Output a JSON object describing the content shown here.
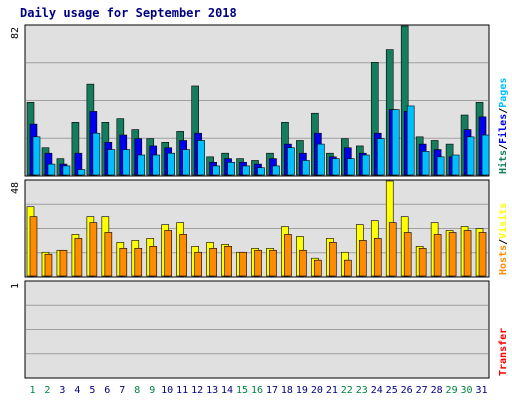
{
  "chart_data": {
    "title": "Daily usage for September 2018",
    "type": "bar",
    "days": [
      {
        "label": "1",
        "weekend": true
      },
      {
        "label": "2",
        "weekend": true
      },
      {
        "label": "3",
        "weekend": false
      },
      {
        "label": "4",
        "weekend": false
      },
      {
        "label": "5",
        "weekend": false
      },
      {
        "label": "6",
        "weekend": false
      },
      {
        "label": "7",
        "weekend": false
      },
      {
        "label": "8",
        "weekend": true
      },
      {
        "label": "9",
        "weekend": true
      },
      {
        "label": "10",
        "weekend": false
      },
      {
        "label": "11",
        "weekend": false
      },
      {
        "label": "12",
        "weekend": false
      },
      {
        "label": "13",
        "weekend": false
      },
      {
        "label": "14",
        "weekend": false
      },
      {
        "label": "15",
        "weekend": true
      },
      {
        "label": "16",
        "weekend": true
      },
      {
        "label": "17",
        "weekend": false
      },
      {
        "label": "18",
        "weekend": false
      },
      {
        "label": "19",
        "weekend": false
      },
      {
        "label": "20",
        "weekend": false
      },
      {
        "label": "21",
        "weekend": false
      },
      {
        "label": "22",
        "weekend": true
      },
      {
        "label": "23",
        "weekend": true
      },
      {
        "label": "24",
        "weekend": false
      },
      {
        "label": "25",
        "weekend": false
      },
      {
        "label": "26",
        "weekend": false
      },
      {
        "label": "27",
        "weekend": false
      },
      {
        "label": "28",
        "weekend": false
      },
      {
        "label": "29",
        "weekend": true
      },
      {
        "label": "30",
        "weekend": true
      },
      {
        "label": "31",
        "weekend": false
      }
    ],
    "panels": [
      {
        "id": "hits-files-pages",
        "max_label": "82",
        "ymax": 82,
        "series": [
          {
            "name": "Hits",
            "color": "#157d5e",
            "values": [
              40,
              15,
              9,
              29,
              50,
              29,
              31,
              25,
              20,
              18,
              24,
              49,
              10,
              12,
              9,
              8,
              12,
              29,
              19,
              34,
              12,
              20,
              16,
              62,
              69,
              82,
              21,
              19,
              17,
              33,
              40
            ]
          },
          {
            "name": "Files",
            "color": "#0000ee",
            "values": [
              28,
              12,
              6,
              12,
              35,
              18,
              22,
              20,
              16,
              15,
              19,
              23,
              7,
              9,
              7,
              6,
              9,
              17,
              12,
              23,
              10,
              15,
              12,
              23,
              36,
              35,
              17,
              14,
              10,
              25,
              32
            ]
          },
          {
            "name": "Pages",
            "color": "#00bfff",
            "values": [
              21,
              6,
              5,
              3,
              23,
              14,
              14,
              11,
              11,
              12,
              14,
              19,
              5,
              7,
              5,
              4,
              5,
              15,
              8,
              17,
              9,
              9,
              11,
              20,
              36,
              38,
              13,
              10,
              11,
              21,
              22
            ]
          }
        ],
        "axis_labels": [
          {
            "text": "Hits",
            "color": "#157d5e"
          },
          {
            "text": "Files",
            "color": "#0000ee"
          },
          {
            "text": "Pages",
            "color": "#00bfff"
          }
        ]
      },
      {
        "id": "visits-hosts",
        "max_label": "48",
        "ymax": 48,
        "series": [
          {
            "name": "Visits",
            "color": "#ffff00",
            "values": [
              35,
              12,
              13,
              21,
              30,
              30,
              17,
              18,
              19,
              26,
              27,
              15,
              17,
              16,
              12,
              14,
              14,
              25,
              20,
              9,
              19,
              12,
              26,
              28,
              48,
              30,
              15,
              27,
              23,
              25,
              24
            ]
          },
          {
            "name": "Hosts",
            "color": "#ff8c00",
            "values": [
              30,
              11,
              13,
              19,
              27,
              22,
              14,
              14,
              15,
              23,
              21,
              12,
              14,
              15,
              12,
              13,
              13,
              21,
              13,
              8,
              17,
              8,
              18,
              19,
              27,
              22,
              14,
              21,
              22,
              23,
              22
            ]
          }
        ],
        "axis_labels": [
          {
            "text": "Hosts",
            "color": "#ff8c00"
          },
          {
            "text": "Visits",
            "color": "#ffff00"
          }
        ]
      },
      {
        "id": "transfer",
        "max_label": "1",
        "ymax": 1,
        "series": [],
        "axis_labels": [
          {
            "text": "Transfer",
            "color": "#ff0000"
          }
        ]
      }
    ],
    "colors": {
      "plot_bg": "#e0e0e0",
      "frame": "#000000",
      "grid": "#a0a0a0",
      "weekday_label": "#000080",
      "weekend_label": "#008040",
      "outline": "#000000"
    }
  }
}
